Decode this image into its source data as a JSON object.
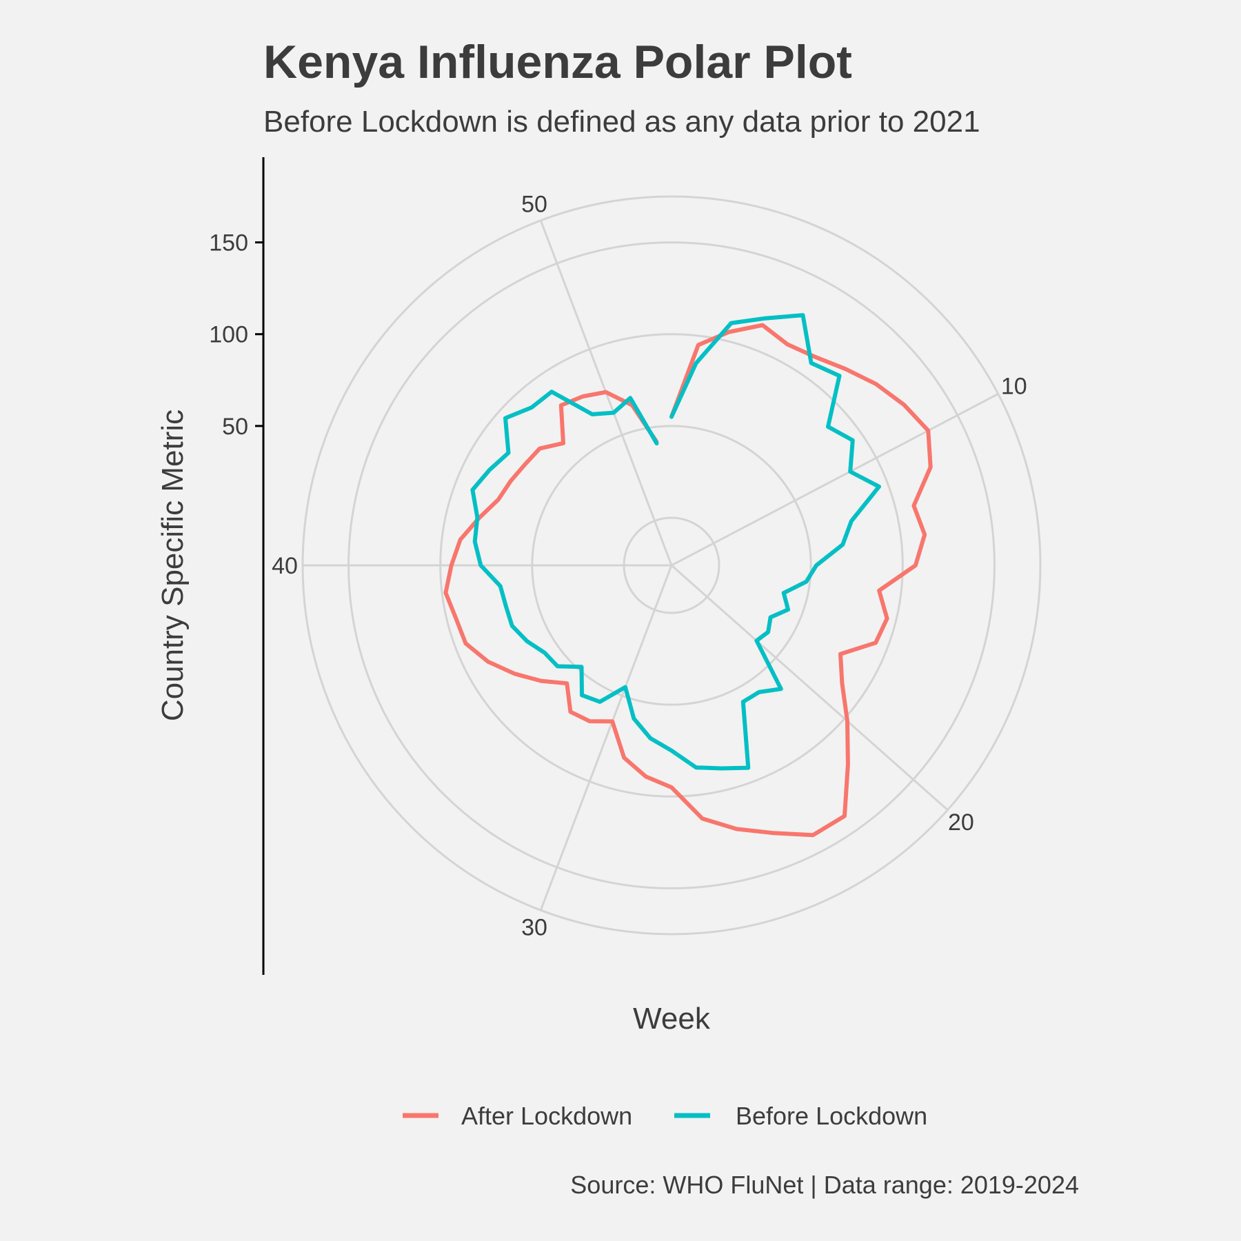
{
  "chart_data": {
    "type": "line",
    "coord": "polar",
    "title": "Kenya Influenza Polar Plot",
    "subtitle": "Before Lockdown is defined as any data prior to 2021",
    "xlabel": "Week",
    "ylabel": "Country Specific Metric",
    "caption": "Source: WHO FluNet | Data range: 2019-2024",
    "x_ticks": [
      10,
      20,
      30,
      40,
      50
    ],
    "x_range": [
      1,
      53
    ],
    "y_ticks": [
      50,
      100,
      150
    ],
    "ylim": [
      0,
      175
    ],
    "grid": true,
    "legend_position": "bottom",
    "series": [
      {
        "name": "After Lockdown",
        "color": "#f8766d",
        "x": [
          1,
          2,
          3,
          4,
          5,
          6,
          7,
          8,
          9,
          10,
          11,
          12,
          13,
          14,
          15,
          16,
          17,
          18,
          19,
          20,
          21,
          22,
          23,
          24,
          25,
          26,
          27,
          28,
          29,
          30,
          31,
          32,
          33,
          34,
          35,
          36,
          37,
          38,
          39,
          40,
          41,
          42,
          43,
          44,
          45,
          46,
          47,
          48,
          49,
          50,
          51,
          52
        ],
        "y": [
          55,
          95,
          105,
          114,
          110,
          112,
          117,
          123,
          128,
          132,
          125,
          110,
          113,
          107,
          88,
          95,
          93,
          78,
          87,
          102,
          119,
          140,
          140,
          130,
          122,
          113,
          95,
          90,
          82,
          65,
          70,
          71,
          60,
          69,
          78,
          87,
          94,
          95,
          98,
          94,
          90,
          82,
          75,
          73,
          71,
          70,
          63,
          80,
          78,
          75,
          64,
          42
        ]
      },
      {
        "name": "Before Lockdown",
        "color": "#00bfc4",
        "x": [
          1,
          2,
          3,
          4,
          5,
          6,
          7,
          8,
          9,
          10,
          11,
          12,
          13,
          14,
          15,
          16,
          17,
          18,
          19,
          20,
          21,
          22,
          23,
          24,
          25,
          26,
          27,
          28,
          29,
          30,
          31,
          32,
          33,
          34,
          35,
          36,
          37,
          38,
          39,
          40,
          41,
          42,
          43,
          44,
          45,
          46,
          47,
          48,
          49,
          50,
          51,
          52
        ],
        "y": [
          55,
          85,
          110,
          118,
          128,
          108,
          112,
          88,
          94,
          84,
          95,
          75,
          68,
          53,
          48,
          37,
          42,
          35,
          38,
          36,
          64,
          58,
          58,
          92,
          88,
          85,
          75,
          69,
          60,
          45,
          58,
          60,
          48,
          57,
          58,
          63,
          67,
          67,
          68,
          78,
          82,
          83,
          90,
          86,
          82,
          95,
          89,
          89,
          67,
          63,
          68,
          41
        ]
      }
    ]
  }
}
